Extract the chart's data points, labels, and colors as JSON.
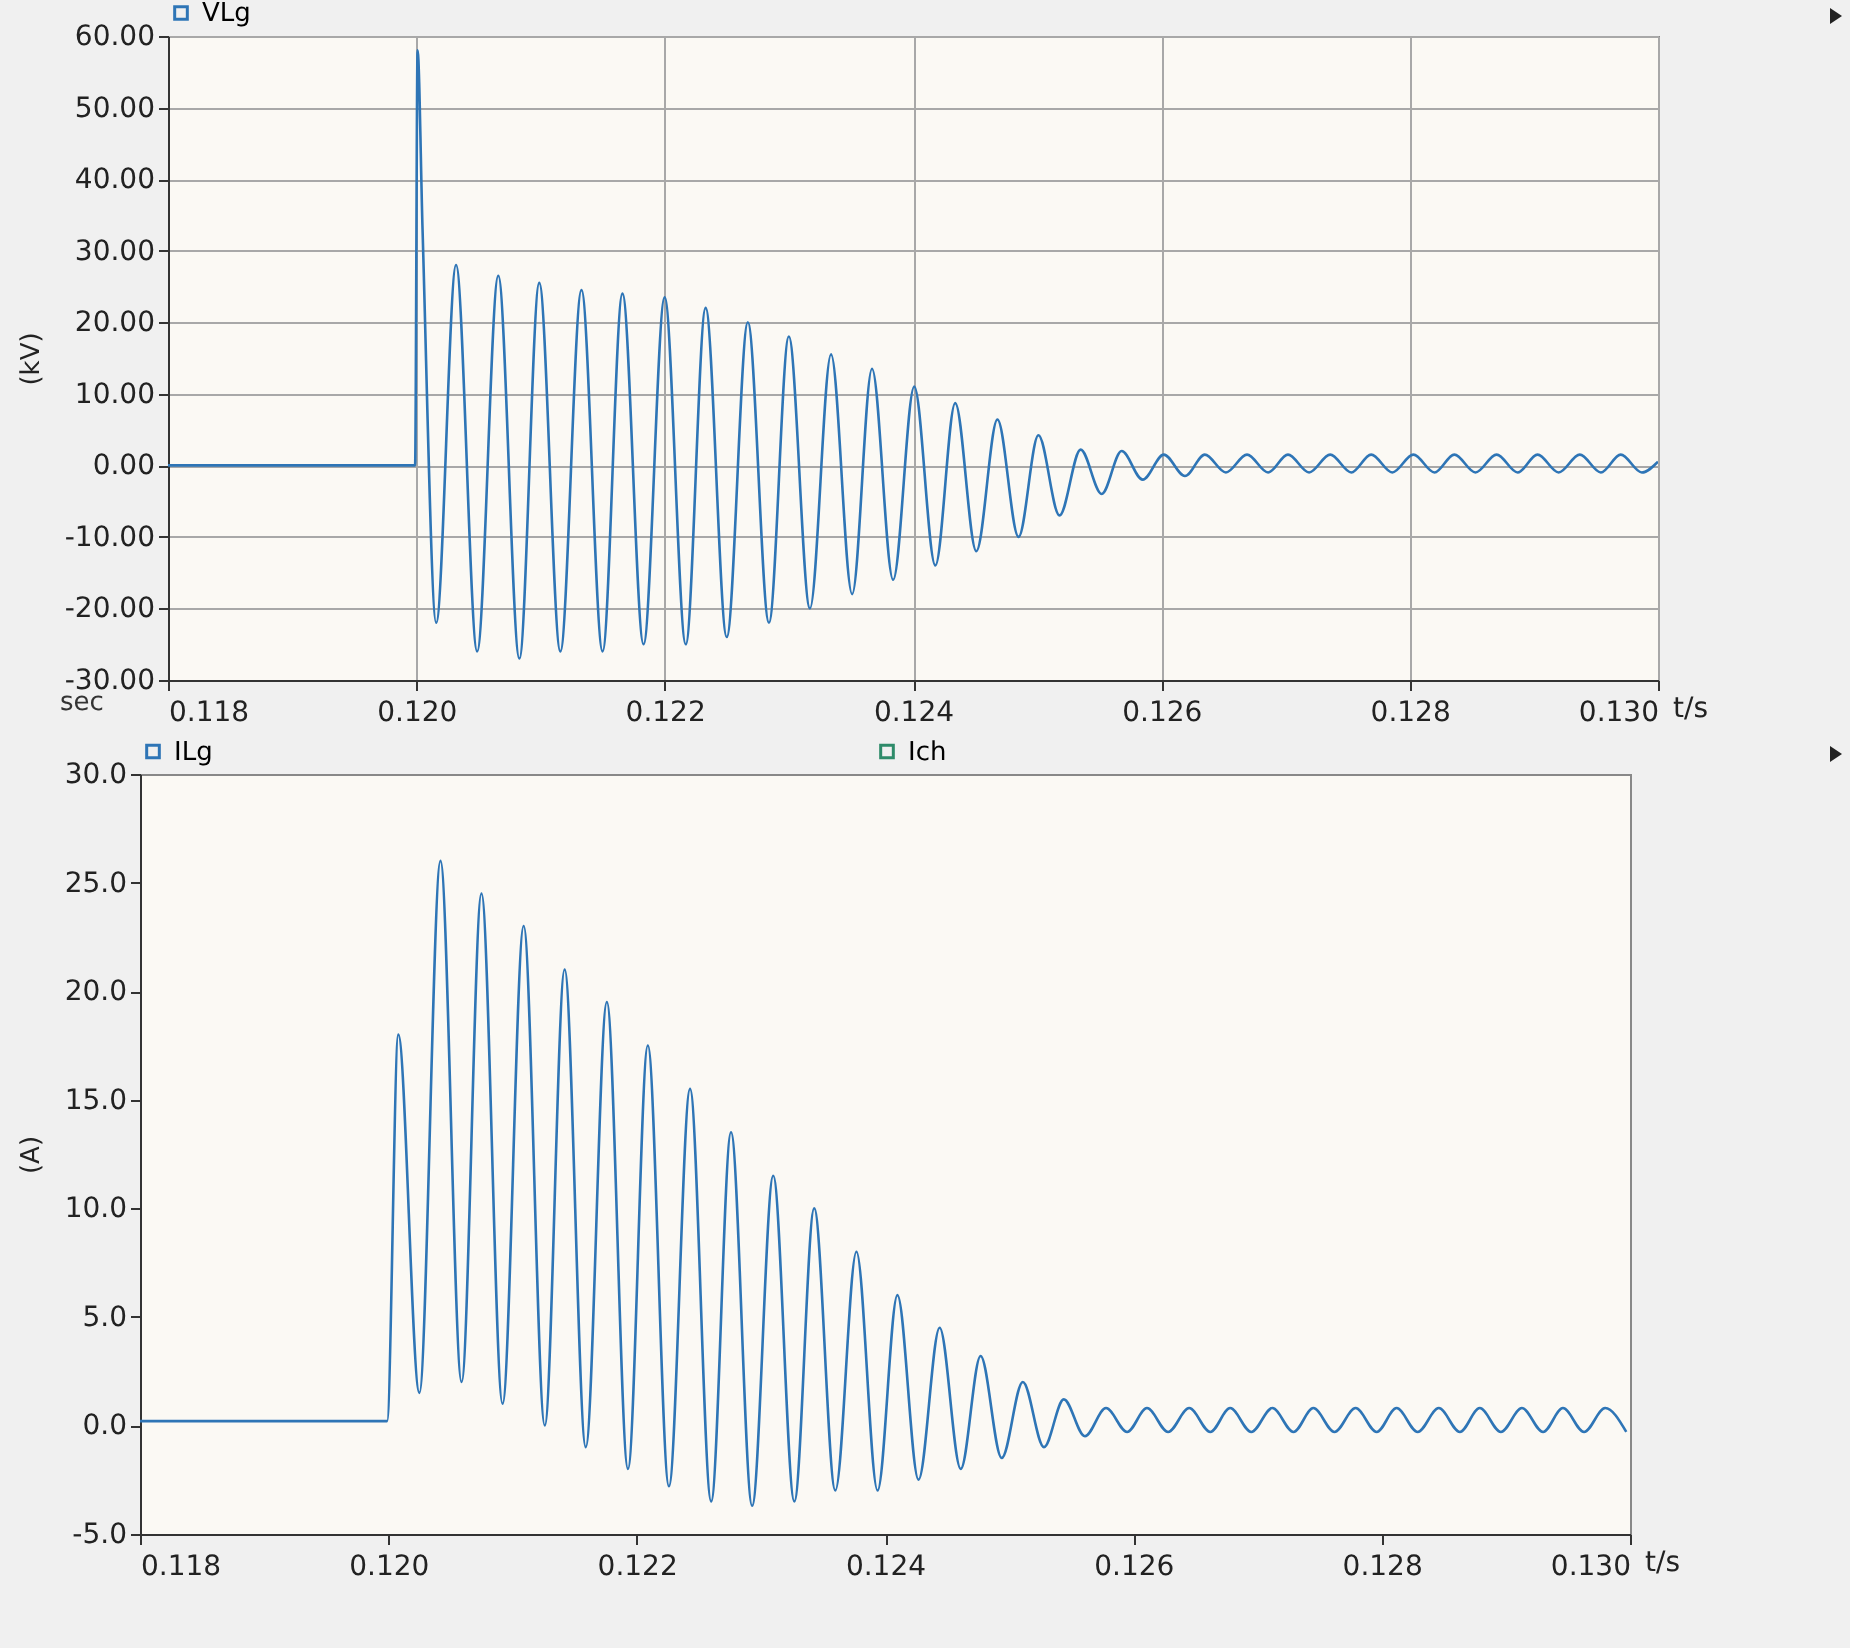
{
  "chart_data": [
    {
      "type": "line",
      "ylabel": "(kV)",
      "xlabel": "t/s",
      "annotations": [
        "sec"
      ],
      "legend": "top",
      "grid": true,
      "line_style": "solid",
      "xlim": [
        0.118,
        0.13
      ],
      "xticks": [
        {
          "value": 0.118,
          "label": "0.118"
        },
        {
          "value": 0.12,
          "label": "0.120"
        },
        {
          "value": 0.122,
          "label": "0.122"
        },
        {
          "value": 0.124,
          "label": "0.124"
        },
        {
          "value": 0.126,
          "label": "0.126"
        },
        {
          "value": 0.128,
          "label": "0.128"
        },
        {
          "value": 0.13,
          "label": "0.130"
        }
      ],
      "ylim": [
        -30,
        60
      ],
      "yticks": [
        {
          "value": -30,
          "label": "-30.00"
        },
        {
          "value": -20,
          "label": "-20.00"
        },
        {
          "value": -10,
          "label": "-10.00"
        },
        {
          "value": 0,
          "label": "0.00"
        },
        {
          "value": 10,
          "label": "10.00"
        },
        {
          "value": 20,
          "label": "20.00"
        },
        {
          "value": 30,
          "label": "30.00"
        },
        {
          "value": 40,
          "label": "40.00"
        },
        {
          "value": 50,
          "label": "50.00"
        },
        {
          "value": 60,
          "label": "60.00"
        }
      ],
      "series": [
        {
          "name": "VLg",
          "color": "#2e75b6",
          "x": [
            0.118,
            0.11999,
            0.12001,
            0.12005,
            0.12016,
            0.12032,
            0.12049,
            0.12066,
            0.12083,
            0.12099,
            0.12116,
            0.12133,
            0.1215,
            0.12166,
            0.12183,
            0.122,
            0.12217,
            0.12233,
            0.1225,
            0.12267,
            0.12284,
            0.123,
            0.12317,
            0.12334,
            0.12351,
            0.12367,
            0.12384,
            0.12401,
            0.12418,
            0.12434,
            0.12451,
            0.12468,
            0.12485,
            0.12501,
            0.12518,
            0.12535,
            0.12552,
            0.12568,
            0.12585,
            0.12602,
            0.12619,
            0.12635,
            0.12652,
            0.12669,
            0.12686,
            0.12702,
            0.12719,
            0.12736,
            0.12753,
            0.12769,
            0.12786,
            0.12803,
            0.1282,
            0.12836,
            0.12853,
            0.1287,
            0.12887,
            0.12903,
            0.1292,
            0.12937,
            0.12954,
            0.1297,
            0.12987,
            0.13
          ],
          "values": [
            0,
            0,
            58,
            33,
            -22,
            28,
            -26,
            26.5,
            -27,
            25.5,
            -26,
            24.5,
            -26,
            24,
            -25,
            23.5,
            -25,
            22,
            -24,
            20,
            -22,
            18,
            -20,
            15.5,
            -18,
            13.5,
            -16,
            11,
            -14,
            8.7,
            -12,
            6.4,
            -10,
            4.2,
            -7,
            2.2,
            -4,
            2,
            -2,
            1.5,
            -1.5,
            1.5,
            -1,
            1.5,
            -1,
            1.5,
            -1,
            1.5,
            -1,
            1.5,
            -1,
            1.5,
            -1,
            1.5,
            -1,
            1.5,
            -1,
            1.5,
            -1,
            1.5,
            -1,
            1.5,
            -1,
            0.5
          ]
        }
      ]
    },
    {
      "type": "line",
      "ylabel": "(A)",
      "xlabel": "t/s",
      "legend": "top",
      "grid": false,
      "line_style": "solid",
      "xlim": [
        0.118,
        0.13
      ],
      "xticks": [
        {
          "value": 0.118,
          "label": "0.118"
        },
        {
          "value": 0.12,
          "label": "0.120"
        },
        {
          "value": 0.122,
          "label": "0.122"
        },
        {
          "value": 0.124,
          "label": "0.124"
        },
        {
          "value": 0.126,
          "label": "0.126"
        },
        {
          "value": 0.128,
          "label": "0.128"
        },
        {
          "value": 0.13,
          "label": "0.130"
        }
      ],
      "ylim": [
        -5,
        30
      ],
      "yticks": [
        {
          "value": -5,
          "label": "-5.0"
        },
        {
          "value": 0,
          "label": "0.0"
        },
        {
          "value": 5,
          "label": "5.0"
        },
        {
          "value": 10,
          "label": "10.0"
        },
        {
          "value": 15,
          "label": "15.0"
        },
        {
          "value": 20,
          "label": "20.0"
        },
        {
          "value": 25,
          "label": "25.0"
        },
        {
          "value": 30,
          "label": "30.0"
        }
      ],
      "series": [
        {
          "name": "ILg",
          "color": "#2e75b6",
          "x": [
            0.118,
            0.11999,
            0.12008,
            0.12025,
            0.12042,
            0.12059,
            0.12075,
            0.12092,
            0.12109,
            0.12126,
            0.12142,
            0.12159,
            0.12176,
            0.12193,
            0.12209,
            0.12226,
            0.12243,
            0.1226,
            0.12276,
            0.12293,
            0.1231,
            0.12327,
            0.12343,
            0.1236,
            0.12377,
            0.12394,
            0.1241,
            0.12427,
            0.12444,
            0.12461,
            0.12477,
            0.12494,
            0.12511,
            0.12528,
            0.12544,
            0.12561,
            0.12578,
            0.12595,
            0.12611,
            0.12628,
            0.12645,
            0.12662,
            0.12678,
            0.12695,
            0.12712,
            0.12729,
            0.12745,
            0.12762,
            0.12779,
            0.12796,
            0.12812,
            0.12829,
            0.12846,
            0.12863,
            0.12879,
            0.12896,
            0.12913,
            0.1293,
            0.12946,
            0.12963,
            0.1298,
            0.12997
          ],
          "values": [
            0.2,
            0.2,
            18,
            1.5,
            26,
            2,
            24.5,
            1,
            23,
            0,
            21,
            -1,
            19.5,
            -2,
            17.5,
            -2.8,
            15.5,
            -3.5,
            13.5,
            -3.7,
            11.5,
            -3.5,
            10,
            -3,
            8,
            -3,
            6,
            -2.5,
            4.5,
            -2,
            3.2,
            -1.5,
            2,
            -1,
            1.2,
            -0.5,
            0.8,
            -0.3,
            0.8,
            -0.3,
            0.8,
            -0.3,
            0.8,
            -0.3,
            0.8,
            -0.3,
            0.8,
            -0.3,
            0.8,
            -0.3,
            0.8,
            -0.3,
            0.8,
            -0.3,
            0.8,
            -0.3,
            0.8,
            -0.3,
            0.8,
            -0.3,
            0.8,
            -0.3
          ]
        },
        {
          "name": "Ich",
          "color": "#2e8b6a"
        }
      ]
    }
  ]
}
